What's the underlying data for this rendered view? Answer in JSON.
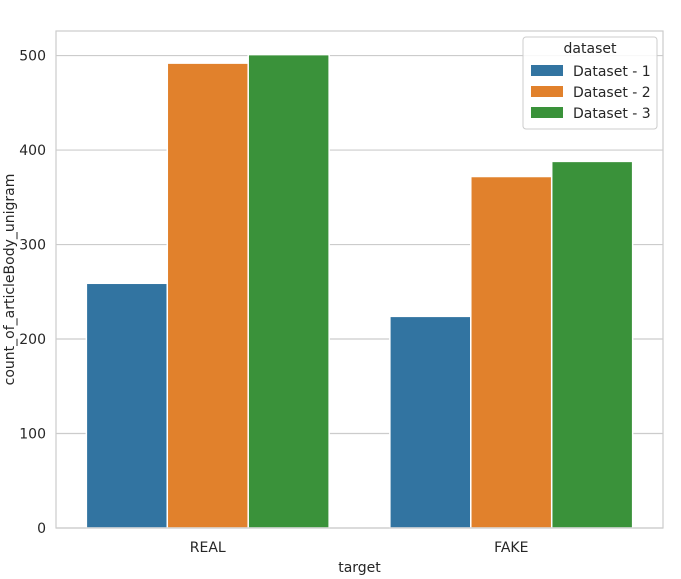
{
  "chart_data": {
    "type": "bar",
    "title": "",
    "xlabel": "target",
    "ylabel": "count_of_articleBody_unigram",
    "categories": [
      "REAL",
      "FAKE"
    ],
    "series": [
      {
        "name": "Dataset - 1",
        "color": "#3274a1",
        "values": [
          259,
          224
        ]
      },
      {
        "name": "Dataset - 2",
        "color": "#e1812c",
        "values": [
          492,
          372
        ]
      },
      {
        "name": "Dataset - 3",
        "color": "#3a923a",
        "values": [
          501,
          388
        ]
      }
    ],
    "ylim": [
      0,
      526
    ],
    "yticks": [
      0,
      100,
      200,
      300,
      400,
      500
    ],
    "grid": true,
    "legend": {
      "title": "dataset",
      "placement": "top-right"
    }
  }
}
